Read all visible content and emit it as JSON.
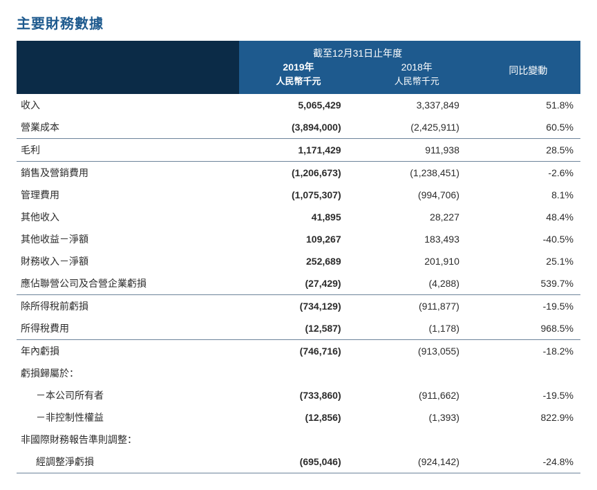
{
  "title": "主要財務數據",
  "colors": {
    "title": "#1e5a8e",
    "header_left_bg": "#0b2b47",
    "header_right_bg": "#1e5a8e",
    "rule": "#6b8299",
    "text": "#2b2b2b",
    "bg": "#ffffff"
  },
  "typography": {
    "title_fontsize": 20,
    "body_fontsize": 14,
    "unit_fontsize": 13,
    "font_family": "Microsoft YaHei"
  },
  "header": {
    "span_label": "截至12月31日止年度",
    "year_2019": "2019年",
    "year_2018": "2018年",
    "change": "同比變動",
    "unit_2019": "人民幣千元",
    "unit_2018": "人民幣千元"
  },
  "columns": [
    "label",
    "2019",
    "2018",
    "change"
  ],
  "rows": [
    {
      "label": "收入",
      "v2019": "5,065,429",
      "v2018": "3,337,849",
      "chg": "51.8%",
      "bold": true
    },
    {
      "label": "營業成本",
      "v2019": "(3,894,000)",
      "v2018": "(2,425,911)",
      "chg": "60.5%",
      "bold": true,
      "divb": true
    },
    {
      "label": "毛利",
      "v2019": "1,171,429",
      "v2018": "911,938",
      "chg": "28.5%",
      "bold": true,
      "divb": true
    },
    {
      "label": "銷售及營銷費用",
      "v2019": "(1,206,673)",
      "v2018": "(1,238,451)",
      "chg": "-2.6%",
      "bold": true
    },
    {
      "label": "管理費用",
      "v2019": "(1,075,307)",
      "v2018": "(994,706)",
      "chg": "8.1%",
      "bold": true
    },
    {
      "label": "其他收入",
      "v2019": "41,895",
      "v2018": "28,227",
      "chg": "48.4%",
      "bold": true
    },
    {
      "label": "其他收益－淨額",
      "v2019": "109,267",
      "v2018": "183,493",
      "chg": "-40.5%",
      "bold": true
    },
    {
      "label": "財務收入－淨額",
      "v2019": "252,689",
      "v2018": "201,910",
      "chg": "25.1%",
      "bold": true
    },
    {
      "label": "應佔聯營公司及合營企業虧損",
      "v2019": "(27,429)",
      "v2018": "(4,288)",
      "chg": "539.7%",
      "bold": true,
      "divb": true
    },
    {
      "label": "除所得稅前虧損",
      "v2019": "(734,129)",
      "v2018": "(911,877)",
      "chg": "-19.5%",
      "bold": true
    },
    {
      "label": "所得稅費用",
      "v2019": "(12,587)",
      "v2018": "(1,178)",
      "chg": "968.5%",
      "bold": true,
      "divb": true
    },
    {
      "label": "年內虧損",
      "v2019": "(746,716)",
      "v2018": "(913,055)",
      "chg": "-18.2%",
      "bold": true
    },
    {
      "label": "虧損歸屬於：",
      "v2019": "",
      "v2018": "",
      "chg": ""
    },
    {
      "label": "－本公司所有者",
      "v2019": "(733,860)",
      "v2018": "(911,662)",
      "chg": "-19.5%",
      "bold": true,
      "indent": true
    },
    {
      "label": "－非控制性權益",
      "v2019": "(12,856)",
      "v2018": "(1,393)",
      "chg": "822.9%",
      "bold": true,
      "indent": true
    },
    {
      "label": "非國際財務報告準則調整：",
      "v2019": "",
      "v2018": "",
      "chg": ""
    },
    {
      "label": "經調整淨虧損",
      "v2019": "(695,046)",
      "v2018": "(924,142)",
      "chg": "-24.8%",
      "bold": true,
      "indent": true,
      "divb": true
    }
  ]
}
